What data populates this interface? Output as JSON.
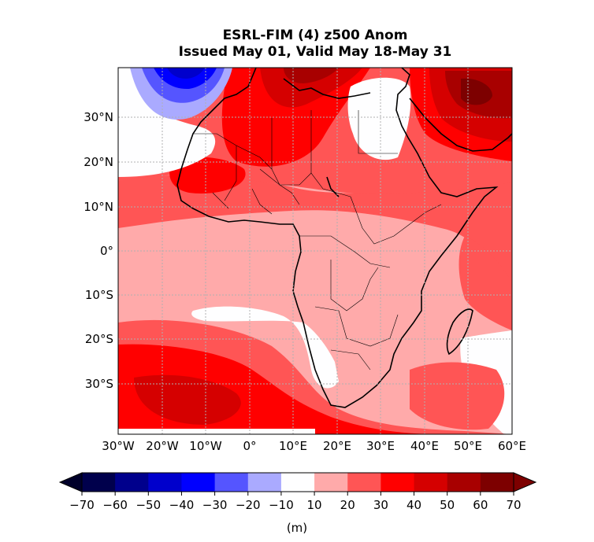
{
  "title": {
    "line1": "ESRL-FIM (4) z500 Anom",
    "line2": "Issued May 01, Valid May 18-May 31"
  },
  "map": {
    "region": "Africa",
    "lat_range": [
      -40,
      40
    ],
    "lon_range": [
      -30,
      60
    ],
    "gridlines": true,
    "x_ticks": [
      "30°W",
      "20°W",
      "10°W",
      "0°",
      "10°E",
      "20°E",
      "30°E",
      "40°E",
      "50°E",
      "60°E"
    ],
    "y_ticks": [
      "30°N",
      "20°N",
      "10°N",
      "0°",
      "10°S",
      "20°S",
      "30°S"
    ]
  },
  "colorbar": {
    "ticks": [
      "−70",
      "−60",
      "−50",
      "−40",
      "−30",
      "−20",
      "−10",
      "10",
      "20",
      "30",
      "40",
      "50",
      "60",
      "70"
    ],
    "units": "(m)",
    "colors": [
      "#00004c",
      "#00008c",
      "#0000cc",
      "#0000ff",
      "#5555ff",
      "#aaaaff",
      "#fefeff",
      "#ffaaaa",
      "#ff5555",
      "#ff0000",
      "#d50000",
      "#a80000",
      "#7d0000"
    ],
    "under_color": "#00002a",
    "over_color": "#7d0000"
  }
}
